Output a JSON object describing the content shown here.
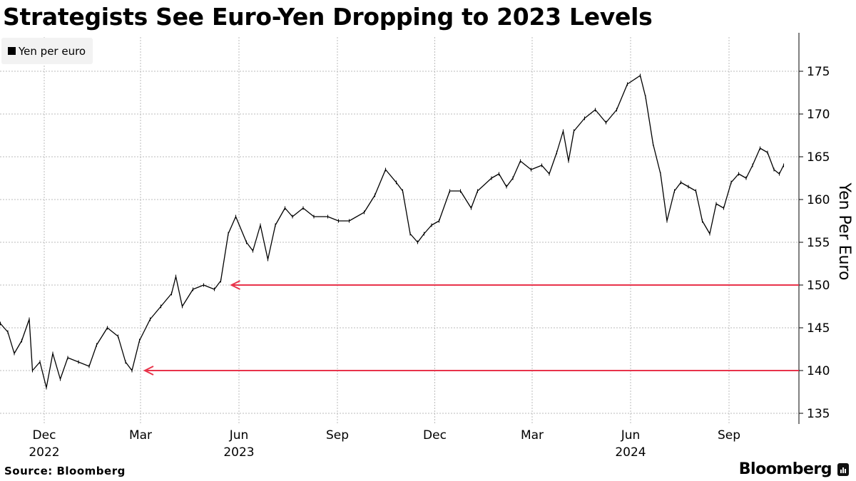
{
  "title": "Strategists See Euro-Yen Dropping to 2023 Levels",
  "source": "Source: Bloomberg",
  "brand": "Bloomberg",
  "colors": {
    "series": "#000000",
    "annotation": "#e8334a",
    "grid": "#bbbbbb"
  },
  "chart_data": {
    "type": "line",
    "title": "Strategists See Euro-Yen Dropping to 2023 Levels",
    "ylabel": "Yen Per Euro",
    "xlabel": "",
    "ylim": [
      134,
      179
    ],
    "yticks": [
      135,
      140,
      145,
      150,
      155,
      160,
      165,
      170,
      175
    ],
    "grid": true,
    "legend": {
      "placement": "top-left",
      "entries": [
        "Yen per euro"
      ]
    },
    "xticks": [
      {
        "date": "2022-12-01",
        "month": "Dec",
        "year": "2022"
      },
      {
        "date": "2023-03-01",
        "month": "Mar",
        "year": ""
      },
      {
        "date": "2023-06-01",
        "month": "Jun",
        "year": "2023"
      },
      {
        "date": "2023-09-01",
        "month": "Sep",
        "year": ""
      },
      {
        "date": "2023-12-01",
        "month": "Dec",
        "year": ""
      },
      {
        "date": "2024-03-01",
        "month": "Mar",
        "year": ""
      },
      {
        "date": "2024-06-01",
        "month": "Jun",
        "year": "2024"
      },
      {
        "date": "2024-09-01",
        "month": "Sep",
        "year": ""
      }
    ],
    "series": [
      {
        "name": "Yen per euro",
        "points": [
          [
            "2022-10-21",
            145.5
          ],
          [
            "2022-10-28",
            144.5
          ],
          [
            "2022-11-03",
            142
          ],
          [
            "2022-11-10",
            143.5
          ],
          [
            "2022-11-17",
            146
          ],
          [
            "2022-11-20",
            140
          ],
          [
            "2022-11-27",
            141
          ],
          [
            "2022-12-03",
            138
          ],
          [
            "2022-12-09",
            142
          ],
          [
            "2022-12-16",
            139
          ],
          [
            "2022-12-23",
            141.5
          ],
          [
            "2023-01-02",
            141
          ],
          [
            "2023-01-12",
            140.5
          ],
          [
            "2023-01-19",
            143
          ],
          [
            "2023-01-29",
            145
          ],
          [
            "2023-02-08",
            144
          ],
          [
            "2023-02-15",
            141
          ],
          [
            "2023-02-21",
            140
          ],
          [
            "2023-02-28",
            143.5
          ],
          [
            "2023-03-10",
            146
          ],
          [
            "2023-03-20",
            147.5
          ],
          [
            "2023-03-30",
            149
          ],
          [
            "2023-04-03",
            151
          ],
          [
            "2023-04-09",
            147.5
          ],
          [
            "2023-04-19",
            149.5
          ],
          [
            "2023-04-29",
            150
          ],
          [
            "2023-05-09",
            149.5
          ],
          [
            "2023-05-15",
            150.5
          ],
          [
            "2023-05-22",
            156
          ],
          [
            "2023-05-29",
            158
          ],
          [
            "2023-06-08",
            155
          ],
          [
            "2023-06-14",
            154
          ],
          [
            "2023-06-21",
            157
          ],
          [
            "2023-06-28",
            153
          ],
          [
            "2023-07-05",
            157
          ],
          [
            "2023-07-14",
            159
          ],
          [
            "2023-07-21",
            158
          ],
          [
            "2023-07-31",
            159
          ],
          [
            "2023-08-10",
            158
          ],
          [
            "2023-08-23",
            158
          ],
          [
            "2023-09-02",
            157.5
          ],
          [
            "2023-09-12",
            157.5
          ],
          [
            "2023-09-26",
            158.5
          ],
          [
            "2023-10-06",
            160.5
          ],
          [
            "2023-10-16",
            163.5
          ],
          [
            "2023-10-26",
            162
          ],
          [
            "2023-11-01",
            161
          ],
          [
            "2023-11-08",
            156
          ],
          [
            "2023-11-15",
            155
          ],
          [
            "2023-11-21",
            156
          ],
          [
            "2023-11-28",
            157
          ],
          [
            "2023-12-05",
            157.5
          ],
          [
            "2023-12-15",
            161
          ],
          [
            "2023-12-25",
            161
          ],
          [
            "2024-01-04",
            159
          ],
          [
            "2024-01-10",
            161
          ],
          [
            "2024-01-23",
            162.5
          ],
          [
            "2024-01-30",
            163
          ],
          [
            "2024-02-06",
            161.5
          ],
          [
            "2024-02-12",
            162.5
          ],
          [
            "2024-02-19",
            164.5
          ],
          [
            "2024-02-29",
            163.5
          ],
          [
            "2024-03-10",
            164
          ],
          [
            "2024-03-17",
            163
          ],
          [
            "2024-03-24",
            165.5
          ],
          [
            "2024-03-30",
            168
          ],
          [
            "2024-04-04",
            164.5
          ],
          [
            "2024-04-09",
            168
          ],
          [
            "2024-04-19",
            169.5
          ],
          [
            "2024-04-29",
            170.5
          ],
          [
            "2024-05-09",
            169
          ],
          [
            "2024-05-19",
            170.5
          ],
          [
            "2024-05-29",
            173.5
          ],
          [
            "2024-06-10",
            174.5
          ],
          [
            "2024-06-15",
            172
          ],
          [
            "2024-06-22",
            166.5
          ],
          [
            "2024-06-29",
            163
          ],
          [
            "2024-07-05",
            157.5
          ],
          [
            "2024-07-12",
            161
          ],
          [
            "2024-07-18",
            162
          ],
          [
            "2024-07-25",
            161.5
          ],
          [
            "2024-08-01",
            161
          ],
          [
            "2024-08-07",
            157.5
          ],
          [
            "2024-08-14",
            156
          ],
          [
            "2024-08-20",
            159.5
          ],
          [
            "2024-08-27",
            159
          ],
          [
            "2024-09-03",
            162
          ],
          [
            "2024-09-10",
            163
          ],
          [
            "2024-09-17",
            162.5
          ],
          [
            "2024-09-23",
            164
          ],
          [
            "2024-09-30",
            166
          ],
          [
            "2024-10-07",
            165.5
          ],
          [
            "2024-10-13",
            163.5
          ],
          [
            "2024-10-18",
            163
          ],
          [
            "2024-10-22",
            164
          ]
        ]
      }
    ],
    "annotations": [
      {
        "type": "arrow-line",
        "value": 150,
        "from_date": "2023-05-25",
        "direction": "left"
      },
      {
        "type": "arrow-line",
        "value": 140,
        "from_date": "2023-03-05",
        "direction": "left"
      }
    ]
  }
}
